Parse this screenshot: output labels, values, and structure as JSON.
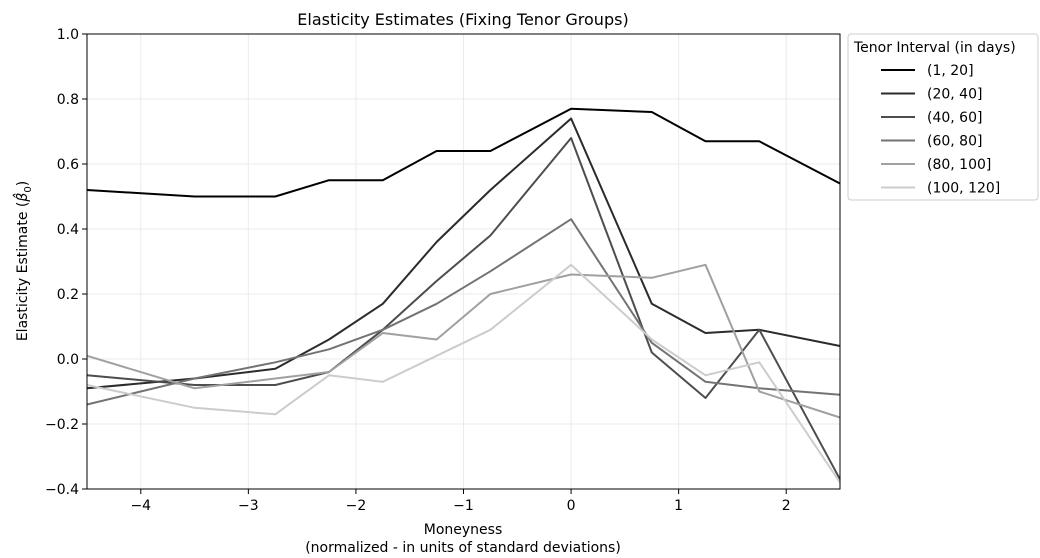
{
  "chart_data": {
    "type": "line",
    "title": "Elasticity Estimates (Fixing Tenor Groups)",
    "xlabel_line1": "Moneyness",
    "xlabel_line2": "(normalized - in units of standard deviations)",
    "ylabel_prefix": "Elasticity Estimate (",
    "ylabel_symbol": "β̂",
    "ylabel_subscript": "0",
    "ylabel_suffix": ")",
    "xlim": [
      -4.5,
      2.5
    ],
    "ylim": [
      -0.4,
      1.0
    ],
    "xticks": [
      -4,
      -3,
      -2,
      -1,
      0,
      1,
      2
    ],
    "xtick_labels": [
      "−4",
      "−3",
      "−2",
      "−1",
      "0",
      "1",
      "2"
    ],
    "yticks": [
      -0.4,
      -0.2,
      0.0,
      0.2,
      0.4,
      0.6,
      0.8,
      1.0
    ],
    "ytick_labels": [
      "−0.4",
      "−0.2",
      "0.0",
      "0.2",
      "0.4",
      "0.6",
      "0.8",
      "1.0"
    ],
    "grid": true,
    "legend_title": "Tenor Interval (in days)",
    "legend_position": "outside right, top",
    "x": [
      -4.5,
      -3.5,
      -2.75,
      -2.25,
      -1.75,
      -1.25,
      -0.75,
      0.0,
      0.75,
      1.25,
      1.75,
      2.5
    ],
    "series": [
      {
        "name": "(1, 20]",
        "color": "#000000",
        "values": [
          0.52,
          0.5,
          0.5,
          0.55,
          0.55,
          0.64,
          0.64,
          0.77,
          0.76,
          0.67,
          0.67,
          0.54
        ]
      },
      {
        "name": "(20, 40]",
        "color": "#2b2b2b",
        "values": [
          -0.09,
          -0.06,
          -0.03,
          0.06,
          0.17,
          0.36,
          0.52,
          0.74,
          0.17,
          0.08,
          0.09,
          0.04
        ]
      },
      {
        "name": "(40, 60]",
        "color": "#4d4d4d",
        "values": [
          -0.05,
          -0.08,
          -0.08,
          -0.04,
          0.09,
          0.24,
          0.38,
          0.68,
          0.02,
          -0.12,
          0.09,
          -0.37
        ]
      },
      {
        "name": "(60, 80]",
        "color": "#737373",
        "values": [
          -0.14,
          -0.06,
          -0.01,
          0.03,
          0.09,
          0.17,
          0.27,
          0.43,
          0.05,
          -0.07,
          -0.09,
          -0.11
        ]
      },
      {
        "name": "(80, 100]",
        "color": "#a0a0a0",
        "values": [
          0.01,
          -0.09,
          -0.06,
          -0.04,
          0.08,
          0.06,
          0.2,
          0.26,
          0.25,
          0.29,
          -0.1,
          -0.18
        ]
      },
      {
        "name": "(100, 120]",
        "color": "#cccccc",
        "values": [
          -0.08,
          -0.15,
          -0.17,
          -0.05,
          -0.07,
          0.01,
          0.09,
          0.29,
          0.06,
          -0.05,
          -0.01,
          -0.38
        ]
      }
    ]
  }
}
